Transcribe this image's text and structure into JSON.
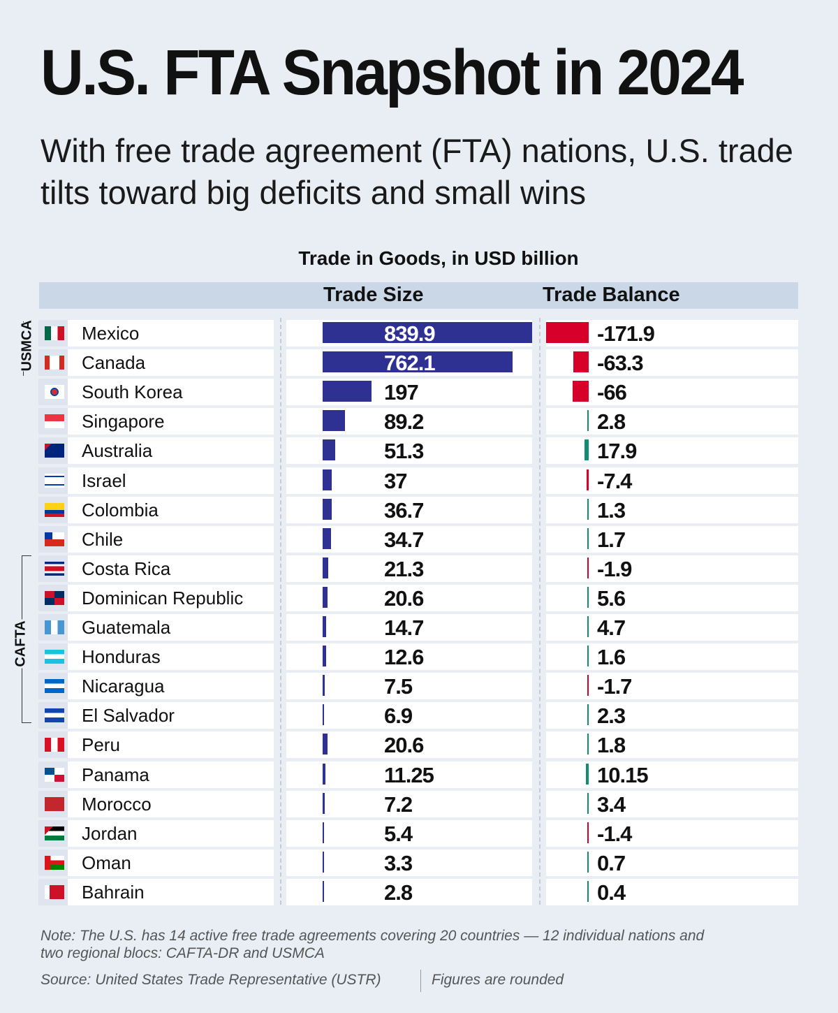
{
  "title": "U.S. FTA Snapshot in 2024",
  "subtitle": "With free trade agreement (FTA) nations, U.S. trade tilts toward big deficits and small wins",
  "chart_data": {
    "type": "bar",
    "title": "Trade in Goods, in USD billion",
    "columns": [
      "Trade Size",
      "Trade Balance"
    ],
    "groups": [
      {
        "name": "USMCA",
        "members": [
          "Mexico",
          "Canada"
        ]
      },
      {
        "name": "CAFTA",
        "members": [
          "Costa Rica",
          "Dominican Republic",
          "Guatemala",
          "Honduras",
          "Nicaragua",
          "El Salvador"
        ]
      }
    ],
    "categories": [
      "Mexico",
      "Canada",
      "South Korea",
      "Singapore",
      "Australia",
      "Israel",
      "Colombia",
      "Chile",
      "Costa Rica",
      "Dominican Republic",
      "Guatemala",
      "Honduras",
      "Nicaragua",
      "El Salvador",
      "Peru",
      "Panama",
      "Morocco",
      "Jordan",
      "Oman",
      "Bahrain"
    ],
    "series": [
      {
        "name": "Trade Size",
        "values": [
          "839.9",
          "762.1",
          "197",
          "89.2",
          "51.3",
          "37",
          "36.7",
          "34.7",
          "21.3",
          "20.6",
          "14.7",
          "12.6",
          "7.5",
          "6.9",
          "20.6",
          "11.25",
          "7.2",
          "5.4",
          "3.3",
          "2.8"
        ]
      },
      {
        "name": "Trade Balance",
        "values": [
          "-171.9",
          "-63.3",
          "-66",
          "2.8",
          "17.9",
          "-7.4",
          "1.3",
          "1.7",
          "-1.9",
          "5.6",
          "4.7",
          "1.6",
          "-1.7",
          "2.3",
          "1.8",
          "10.15",
          "3.4",
          "-1.4",
          "0.7",
          "0.4"
        ]
      }
    ],
    "colors": {
      "size": "#2e3192",
      "deficit": "#d7002a",
      "surplus": "#0f8f6f"
    }
  },
  "note": "Note: The U.S. has 14 active free trade agreements covering 20 countries — 12 individual nations and two regional blocs: CAFTA-DR and USMCA",
  "source": "Source: United States Trade Representative (USTR)",
  "figures_note": "Figures are rounded"
}
